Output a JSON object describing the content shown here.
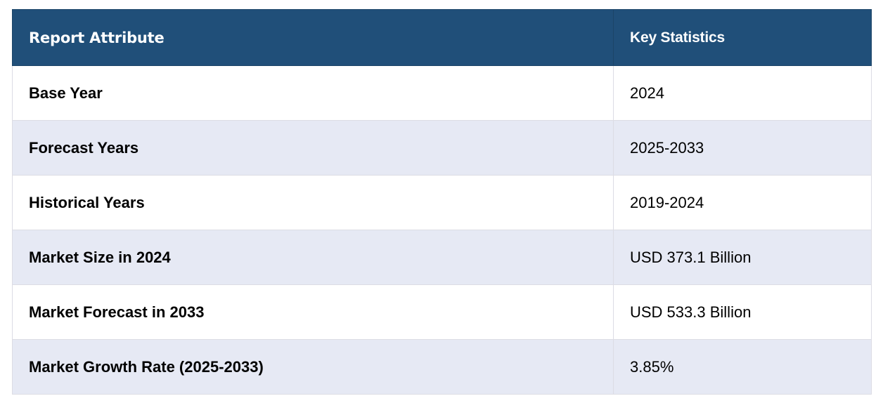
{
  "table": {
    "headers": [
      "Report Attribute",
      "Key Statistics"
    ],
    "rows": [
      [
        "Base Year",
        "2024"
      ],
      [
        "Forecast Years",
        "2025-2033"
      ],
      [
        "Historical Years",
        "2019-2024"
      ],
      [
        "Market Size in 2024",
        "USD 373.1 Billion"
      ],
      [
        "Market Forecast in 2033",
        "USD 533.3 Billion"
      ],
      [
        "Market Growth Rate (2025-2033)",
        "3.85%"
      ]
    ],
    "colors": {
      "header_bg": "#204f79",
      "header_text": "#ffffff",
      "row_alt_bg": "#e6e9f4",
      "row_bg": "#ffffff"
    }
  }
}
